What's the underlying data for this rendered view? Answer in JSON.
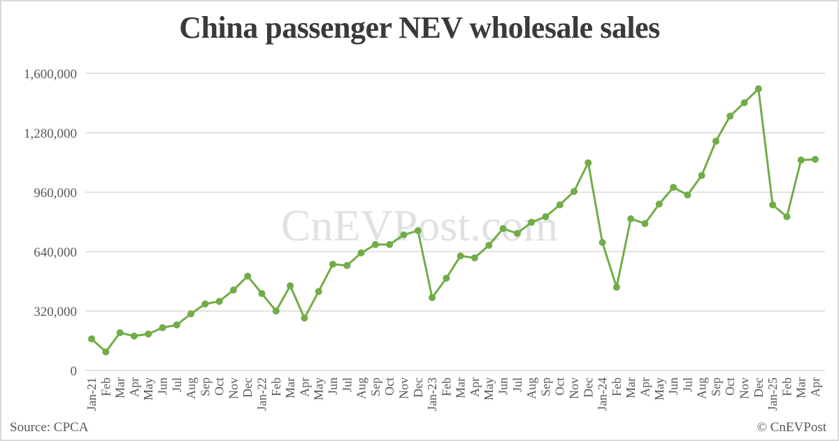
{
  "title": "China passenger NEV wholesale sales",
  "watermark": "CnEVPost.com",
  "source": "Source: CPCA",
  "copyright": "© CnEVPost",
  "colors": {
    "line": "#70ad47",
    "grid": "#d9d9d9",
    "text": "#595959",
    "title": "#3a3a3a"
  },
  "chart_data": {
    "type": "line",
    "title": "China passenger NEV wholesale sales",
    "xlabel": "",
    "ylabel": "",
    "ylim": [
      0,
      1600000
    ],
    "yticks": [
      0,
      320000,
      640000,
      960000,
      1280000,
      1600000
    ],
    "ytick_labels": [
      "0",
      "320,000",
      "640,000",
      "960,000",
      "1,280,000",
      "1,600,000"
    ],
    "grid": true,
    "legend": null,
    "categories": [
      "Jan-21",
      "Feb",
      "Mar",
      "Apr",
      "May",
      "Jun",
      "Jul",
      "Aug",
      "Sep",
      "Oct",
      "Nov",
      "Dec",
      "Jan-22",
      "Feb",
      "Mar",
      "Apr",
      "May",
      "Jun",
      "Jul",
      "Aug",
      "Sep",
      "Oct",
      "Nov",
      "Dec",
      "Jan-23",
      "Feb",
      "Mar",
      "Apr",
      "May",
      "Jun",
      "Jul",
      "Aug",
      "Sep",
      "Oct",
      "Nov",
      "Dec",
      "Jan-24",
      "Feb",
      "Mar",
      "Apr",
      "May",
      "Jun",
      "Jul",
      "Aug",
      "Sep",
      "Oct",
      "Nov",
      "Dec",
      "Jan-25",
      "Feb",
      "Mar",
      "Apr"
    ],
    "series": [
      {
        "name": "NEV wholesale sales",
        "values": [
          170000,
          100000,
          203000,
          185000,
          196000,
          230000,
          245000,
          305000,
          358000,
          372000,
          433000,
          508000,
          414000,
          320000,
          456000,
          282000,
          425000,
          572000,
          565000,
          633000,
          678000,
          678000,
          730000,
          753000,
          392000,
          497000,
          617000,
          606000,
          674000,
          764000,
          738000,
          798000,
          828000,
          892000,
          964000,
          1118000,
          689000,
          448000,
          817000,
          791000,
          896000,
          986000,
          945000,
          1050000,
          1235000,
          1370000,
          1442000,
          1517000,
          892000,
          828000,
          1133000,
          1137000
        ]
      }
    ]
  }
}
